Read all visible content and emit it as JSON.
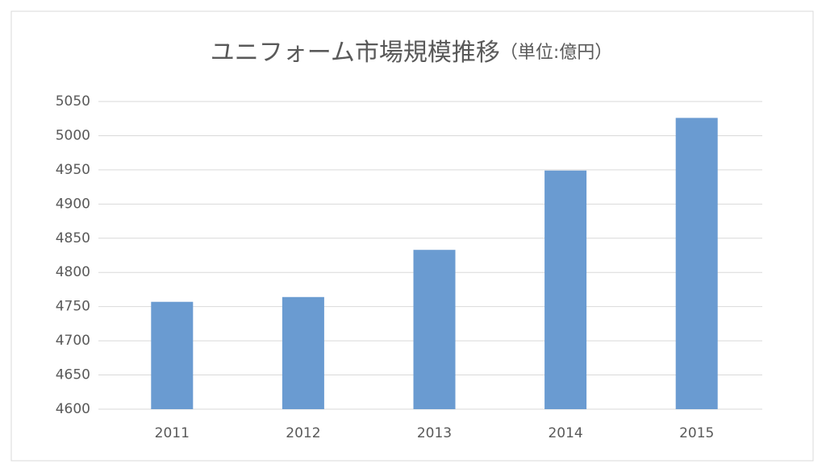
{
  "chart_data": {
    "type": "bar",
    "title": "ユニフォーム市場規模推移",
    "subtitle": "（単位:億円）",
    "categories": [
      "2011",
      "2012",
      "2013",
      "2014",
      "2015"
    ],
    "values": [
      4757,
      4764,
      4833,
      4949,
      5026
    ],
    "color": "#6a9bd1",
    "ylim": [
      4600,
      5050
    ],
    "yticks": [
      4600,
      4650,
      4700,
      4750,
      4800,
      4850,
      4900,
      4950,
      5000,
      5050
    ],
    "grid": true
  }
}
